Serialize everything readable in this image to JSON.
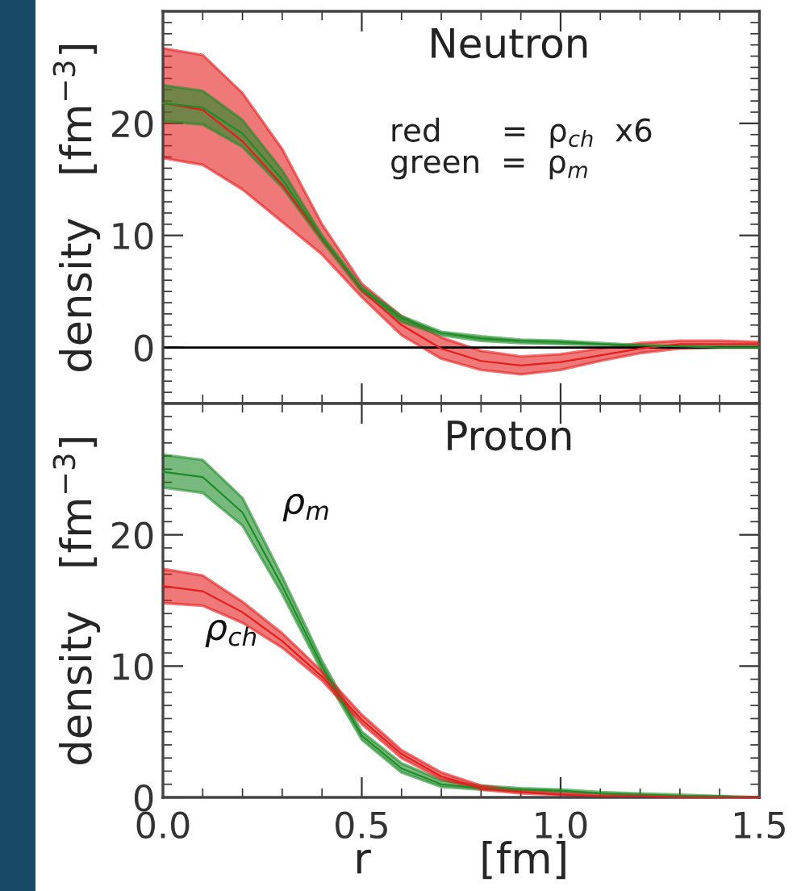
{
  "chart_data": [
    {
      "type": "line",
      "xlim": [
        0,
        1.5
      ],
      "xticks": [
        {
          "value": 0,
          "label": null
        },
        {
          "value": 0.5,
          "label": null
        },
        {
          "value": 1,
          "label": null
        },
        {
          "value": 1.5,
          "label": null
        }
      ],
      "ylim": [
        -5,
        30
      ],
      "yticks": [
        0,
        10,
        20
      ],
      "tick_labels": "y",
      "ylabel": "density   [fm$^{−3}$]",
      "annotations": [
        "Neutron",
        "red      =  ρ$_{ch}$  x6",
        "green  =  ρ$_{m}$"
      ],
      "ref_lines": [
        {
          "axis": "y",
          "value": 0,
          "color": "#000000"
        }
      ],
      "x": [
        0,
        0.1,
        0.2,
        0.3,
        0.4,
        0.5,
        0.6,
        0.7,
        0.8,
        0.9,
        1.0,
        1.1,
        1.2,
        1.3,
        1.4,
        1.5
      ],
      "series": [
        {
          "color": "#e41e1e",
          "lower": [
            16.9,
            16.3,
            14.1,
            11.2,
            8.3,
            4.5,
            1.1,
            -1.0,
            -2.0,
            -2.4,
            -2.0,
            -1.2,
            -0.5,
            -0.1,
            0.0,
            0.0
          ],
          "upper": [
            26.7,
            26.1,
            22.7,
            17.7,
            11.0,
            5.7,
            2.8,
            0.9,
            -0.3,
            -0.8,
            -0.6,
            -0.1,
            0.4,
            0.6,
            0.6,
            0.5
          ],
          "values": [
            21.8,
            21.2,
            18.4,
            14.5,
            9.7,
            5.1,
            2.0,
            -0.1,
            -1.2,
            -1.6,
            -1.3,
            -0.7,
            -0.1,
            0.3,
            0.3,
            0.3
          ]
        },
        {
          "color": "#1e8c28",
          "lower": [
            20.2,
            19.9,
            17.9,
            14.3,
            9.5,
            5.0,
            2.3,
            1.1,
            0.6,
            0.4,
            0.3,
            0.2,
            0.1,
            0.0,
            0.0,
            0.0
          ],
          "upper": [
            23.4,
            22.9,
            20.3,
            15.8,
            10.0,
            5.4,
            2.8,
            1.4,
            1.0,
            0.7,
            0.6,
            0.4,
            0.2,
            0.1,
            0.1,
            0.1
          ],
          "values": [
            21.8,
            21.4,
            19.1,
            15.0,
            9.8,
            5.2,
            2.6,
            1.3,
            0.8,
            0.6,
            0.5,
            0.3,
            0.2,
            0.1,
            0.0,
            0.0
          ]
        }
      ]
    },
    {
      "type": "line",
      "xlim": [
        0,
        1.5
      ],
      "ylim": [
        0,
        30
      ],
      "yticks": [
        0,
        10,
        20
      ],
      "ylabel": "density   [fm$^{−3}$]",
      "xlabel": "r        [fm]",
      "xticks": [
        {
          "value": 0,
          "label": "0.0"
        },
        {
          "value": 0.5,
          "label": "0.5"
        },
        {
          "value": 1,
          "label": "1.0"
        },
        {
          "value": 1.5,
          "label": "1.5"
        }
      ],
      "annotations": [
        "Proton"
      ],
      "x": [
        0,
        0.1,
        0.2,
        0.3,
        0.4,
        0.5,
        0.6,
        0.7,
        0.8,
        0.9,
        1.0,
        1.1,
        1.2,
        1.3,
        1.4,
        1.5
      ],
      "series": [
        {
          "name": "ρ$_{m}$",
          "color": "#1e8c28",
          "lower": [
            23.6,
            23.2,
            20.7,
            15.5,
            9.6,
            4.4,
            1.9,
            0.8,
            0.6,
            0.5,
            0.4,
            0.3,
            0.2,
            0.1,
            0.0,
            0.0
          ],
          "upper": [
            26.1,
            25.7,
            22.8,
            16.8,
            10.4,
            5.0,
            2.6,
            1.3,
            0.9,
            0.7,
            0.6,
            0.4,
            0.3,
            0.2,
            0.1,
            0.0
          ],
          "values": [
            24.8,
            24.4,
            21.7,
            16.1,
            10.0,
            4.7,
            2.2,
            1.0,
            0.7,
            0.6,
            0.5,
            0.3,
            0.2,
            0.1,
            0.1,
            0.0
          ]
        },
        {
          "name": "ρ$_{ch}$",
          "color": "#e41e1e",
          "lower": [
            14.8,
            14.6,
            13.3,
            11.4,
            8.9,
            5.6,
            3.0,
            1.4,
            0.6,
            0.3,
            0.2,
            0.1,
            0.0,
            0.0,
            0.0,
            0.0
          ],
          "upper": [
            17.4,
            16.9,
            14.9,
            12.5,
            9.6,
            6.3,
            3.6,
            1.9,
            0.9,
            0.5,
            0.3,
            0.2,
            0.1,
            0.1,
            0.0,
            0.0
          ],
          "values": [
            16.1,
            15.7,
            14.1,
            11.9,
            9.2,
            5.9,
            3.3,
            1.6,
            0.7,
            0.4,
            0.2,
            0.1,
            0.1,
            0.0,
            0.0,
            0.0
          ]
        }
      ]
    }
  ]
}
